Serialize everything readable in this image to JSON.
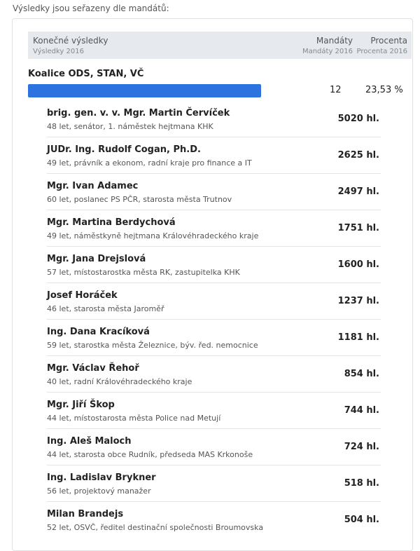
{
  "sort_note": "Výsledky jsou seřazeny dle mandátů:",
  "header": {
    "col_main": "Konečné výsledky",
    "col_main_sub": "Výsledky 2016",
    "col_seats": "Mandáty",
    "col_seats_sub": "Mandáty 2016",
    "col_pct": "Procenta",
    "col_pct_sub": "Procenta 2016"
  },
  "party": {
    "name": "Koalice ODS, STAN, VČ",
    "seats": "12",
    "percent": "23,53 %",
    "bar_color": "#2d73e0"
  },
  "candidates": [
    {
      "name": "brig. gen. v. v. Mgr. Martin Červíček",
      "desc": "48 let, senátor, 1. náměstek hejtmana KHK",
      "votes": "5020 hl."
    },
    {
      "name": "JUDr. Ing. Rudolf Cogan, Ph.D.",
      "desc": "49 let, právník a ekonom, radní kraje pro finance a IT",
      "votes": "2625 hl."
    },
    {
      "name": "Mgr. Ivan Adamec",
      "desc": "60 let, poslanec PS PČR, starosta města Trutnov",
      "votes": "2497 hl."
    },
    {
      "name": "Mgr. Martina Berdychová",
      "desc": "49 let, náměstkyně hejtmana Královéhradeckého kraje",
      "votes": "1751 hl."
    },
    {
      "name": "Mgr. Jana Drejslová",
      "desc": "57 let, místostarostka města RK, zastupitelka KHK",
      "votes": "1600 hl."
    },
    {
      "name": "Josef Horáček",
      "desc": "46 let, starosta města Jaroměř",
      "votes": "1237 hl."
    },
    {
      "name": "Ing. Dana Kracíková",
      "desc": "59 let, starostka města Železnice, býv. řed. nemocnice",
      "votes": "1181 hl."
    },
    {
      "name": "Mgr. Václav Řehoř",
      "desc": "40 let, radní Královéhradeckého kraje",
      "votes": "854 hl."
    },
    {
      "name": "Mgr. Jiří Škop",
      "desc": "44 let, místostarosta města Police nad Metují",
      "votes": "744 hl."
    },
    {
      "name": "Ing. Aleš Maloch",
      "desc": "44 let, starosta obce Rudník, předseda MAS Krkonoše",
      "votes": "724 hl."
    },
    {
      "name": "Ing. Ladislav Brykner",
      "desc": "56 let, projektový manažer",
      "votes": "518 hl."
    },
    {
      "name": "Milan Brandejs",
      "desc": "52 let, OSVČ, ředitel destinační společnosti Broumovska",
      "votes": "504 hl."
    }
  ]
}
